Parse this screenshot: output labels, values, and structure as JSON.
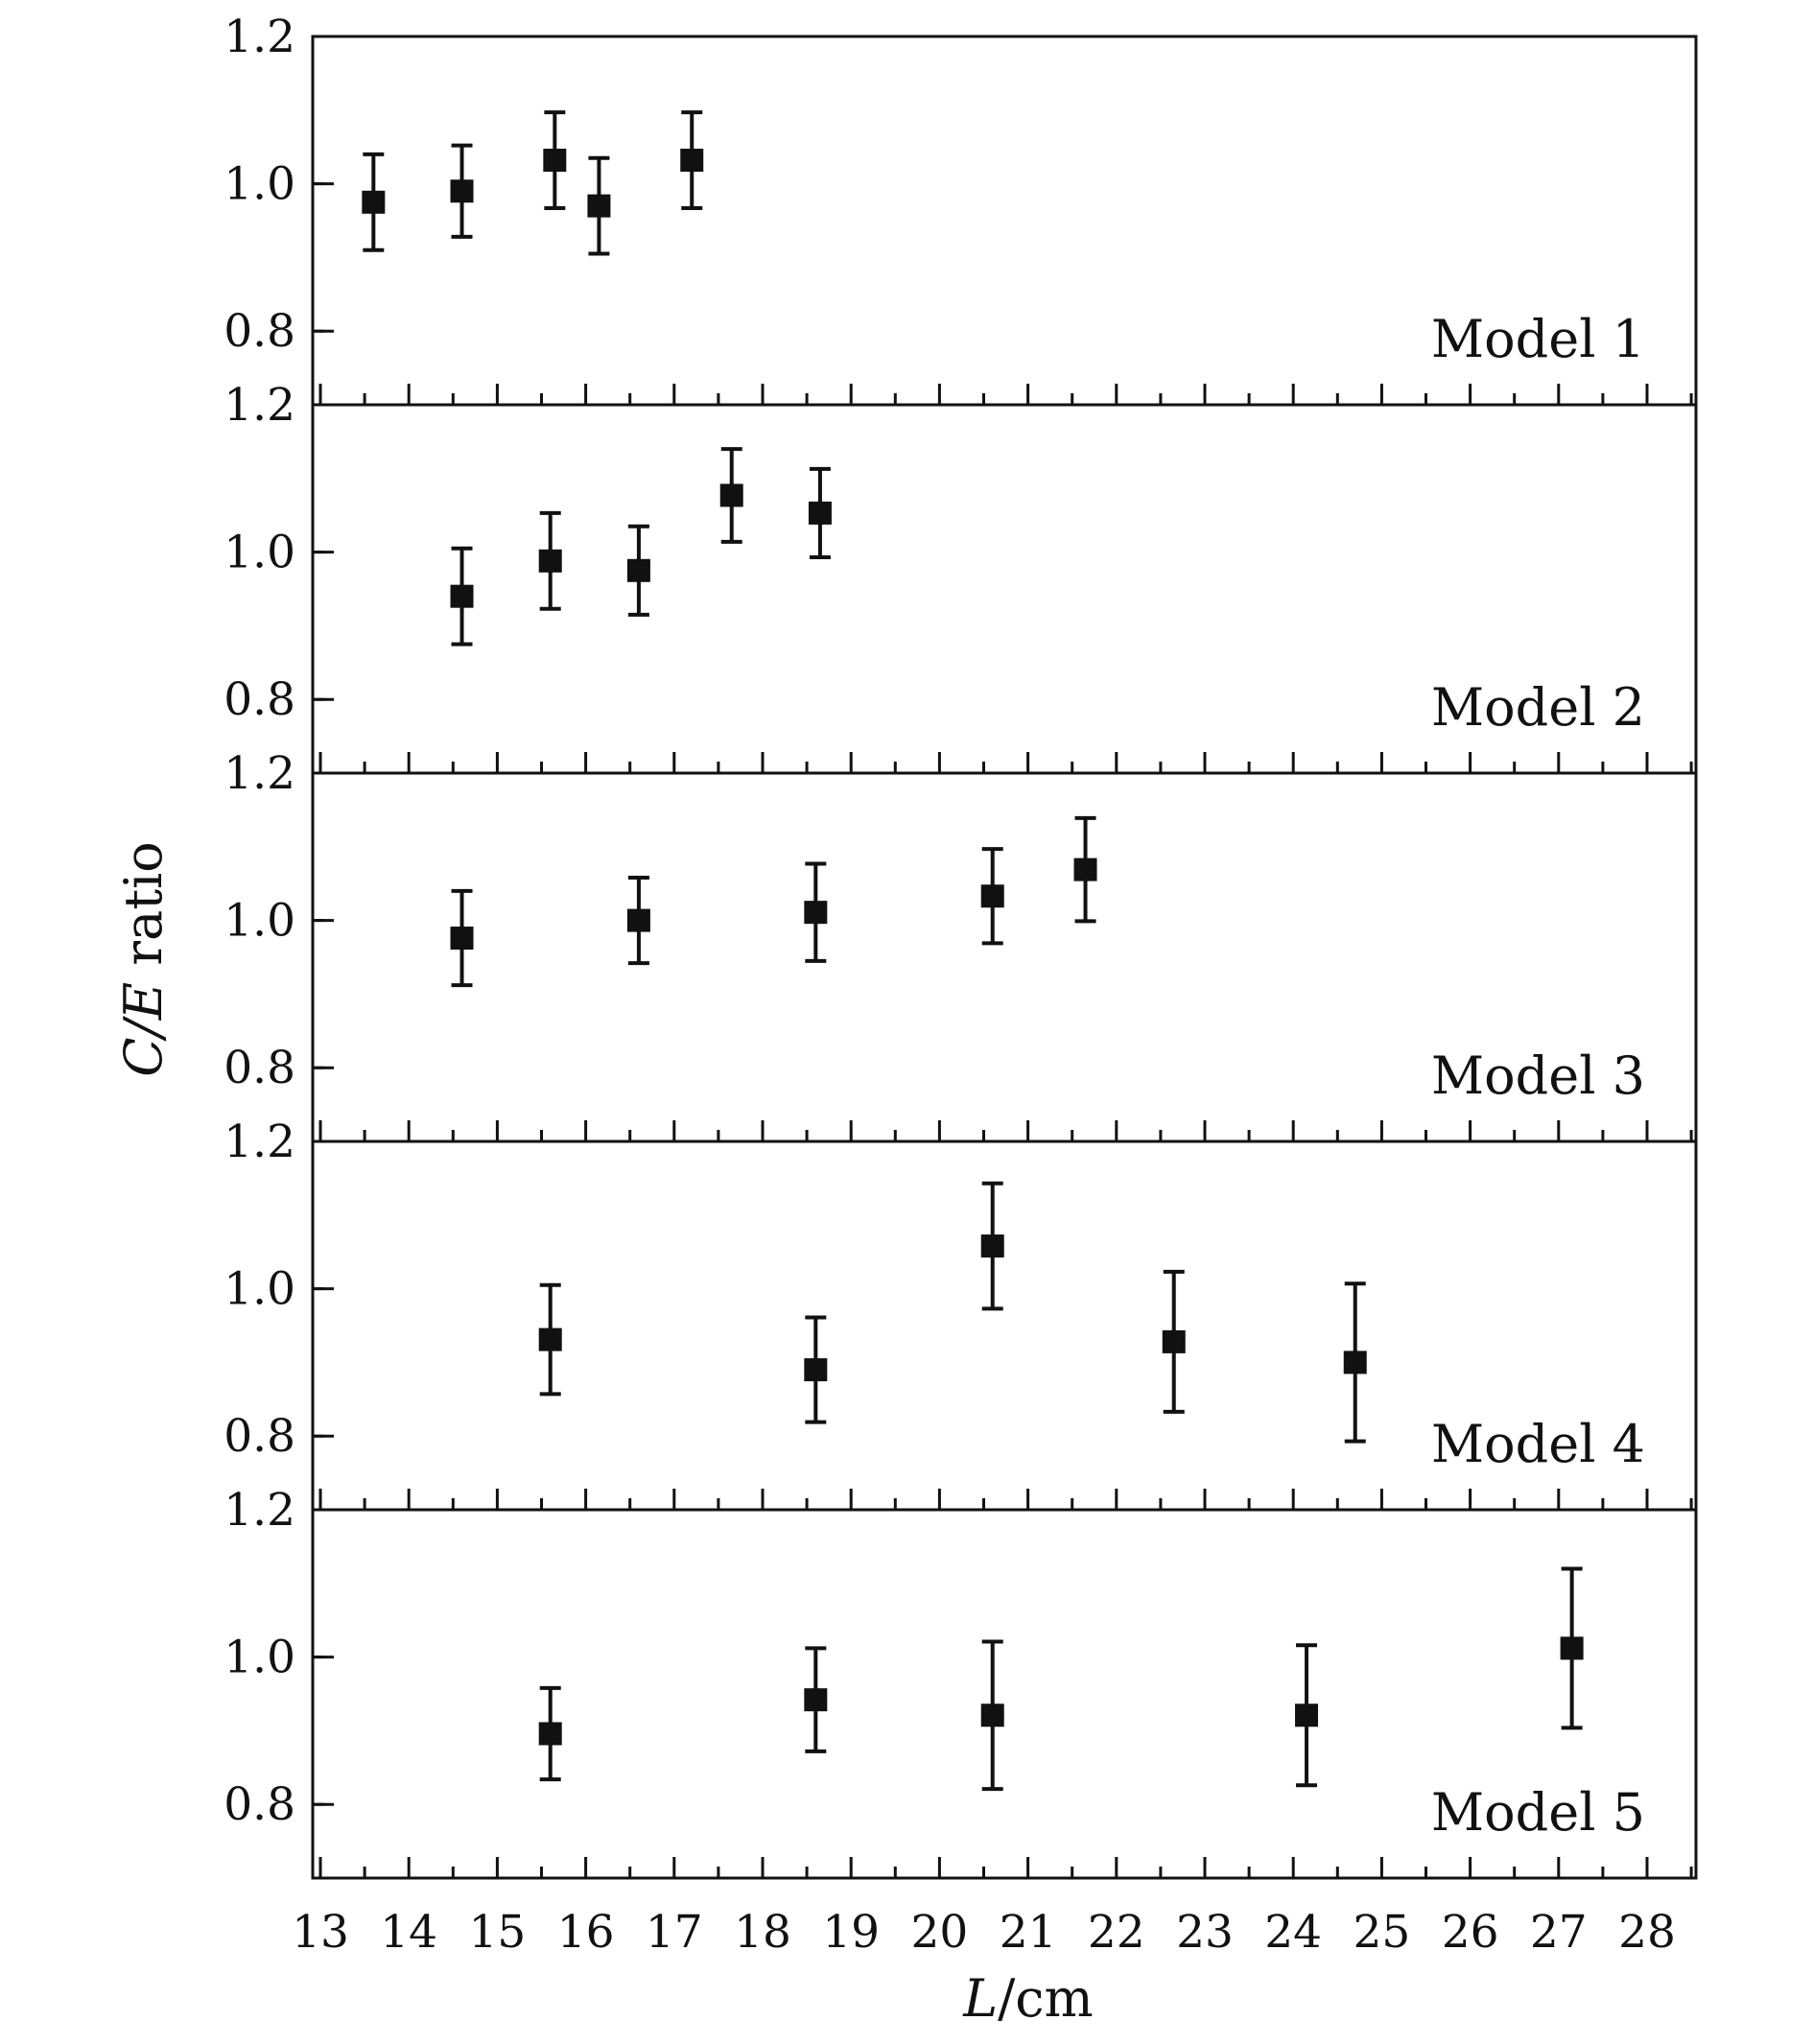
{
  "chart_data": {
    "type": "scatter",
    "shared_x": true,
    "xlim": [
      12.7,
      28.5
    ],
    "x_ticks": [
      13,
      14,
      15,
      16,
      17,
      18,
      19,
      20,
      21,
      22,
      23,
      24,
      25,
      26,
      27,
      28
    ],
    "x_tick_labels": [
      "13",
      "14",
      "15",
      "16",
      "17",
      "18",
      "19",
      "20",
      "21",
      "22",
      "23",
      "24",
      "25",
      "26",
      "27",
      "28"
    ],
    "ylim": [
      0.7,
      1.2
    ],
    "y_ticks": [
      0.8,
      1.0,
      1.2
    ],
    "y_tick_labels": [
      "0.8",
      "1.0",
      "1.2"
    ],
    "xlabel": {
      "var": "L",
      "unit": "/cm"
    },
    "ylabel": {
      "var": "C/E",
      "text": " ratio"
    },
    "grid": false,
    "marker": "square",
    "color": "#111111",
    "panels": [
      {
        "label": "Model 1",
        "points": [
          {
            "x": 13.6,
            "y": 0.975,
            "err": 0.065
          },
          {
            "x": 14.6,
            "y": 0.99,
            "err": 0.062
          },
          {
            "x": 15.65,
            "y": 1.032,
            "err": 0.065
          },
          {
            "x": 16.15,
            "y": 0.97,
            "err": 0.065
          },
          {
            "x": 17.2,
            "y": 1.032,
            "err": 0.065
          }
        ]
      },
      {
        "label": "Model 2",
        "points": [
          {
            "x": 14.6,
            "y": 0.94,
            "err": 0.065
          },
          {
            "x": 15.6,
            "y": 0.988,
            "err": 0.065
          },
          {
            "x": 16.6,
            "y": 0.975,
            "err": 0.06
          },
          {
            "x": 17.65,
            "y": 1.077,
            "err": 0.063
          },
          {
            "x": 18.65,
            "y": 1.053,
            "err": 0.06
          }
        ]
      },
      {
        "label": "Model 3",
        "points": [
          {
            "x": 14.6,
            "y": 0.976,
            "err": 0.064
          },
          {
            "x": 16.6,
            "y": 1.0,
            "err": 0.058
          },
          {
            "x": 18.6,
            "y": 1.011,
            "err": 0.066
          },
          {
            "x": 20.6,
            "y": 1.033,
            "err": 0.064
          },
          {
            "x": 21.65,
            "y": 1.069,
            "err": 0.07
          }
        ]
      },
      {
        "label": "Model 4",
        "points": [
          {
            "x": 15.6,
            "y": 0.931,
            "err": 0.074
          },
          {
            "x": 18.6,
            "y": 0.89,
            "err": 0.071
          },
          {
            "x": 20.6,
            "y": 1.058,
            "err": 0.085
          },
          {
            "x": 22.65,
            "y": 0.928,
            "err": 0.095
          },
          {
            "x": 24.7,
            "y": 0.9,
            "err": 0.107
          }
        ]
      },
      {
        "label": "Model 5",
        "points": [
          {
            "x": 15.6,
            "y": 0.896,
            "err": 0.062
          },
          {
            "x": 18.6,
            "y": 0.942,
            "err": 0.07
          },
          {
            "x": 20.6,
            "y": 0.921,
            "err": 0.1
          },
          {
            "x": 24.15,
            "y": 0.921,
            "err": 0.095
          },
          {
            "x": 27.15,
            "y": 1.012,
            "err": 0.108
          }
        ]
      }
    ]
  }
}
